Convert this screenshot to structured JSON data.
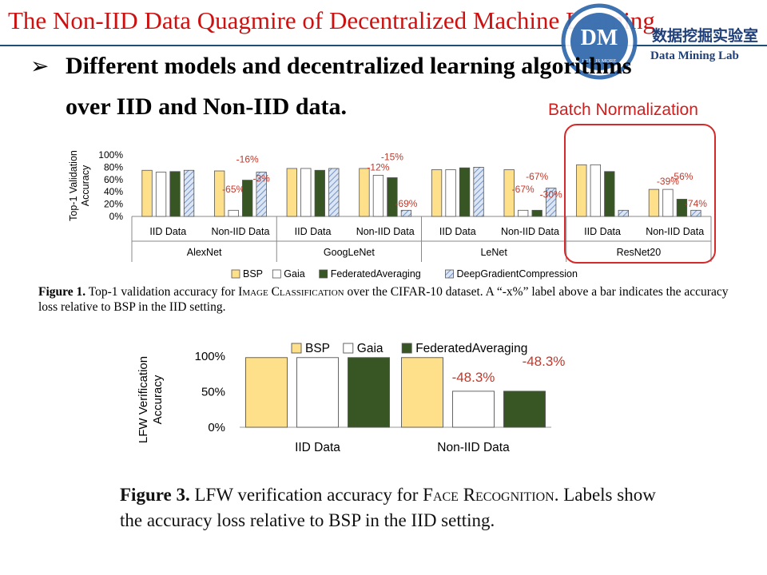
{
  "header": {
    "title": "The Non-IID Data Quagmire of Decentralized Machine Learning",
    "logo": {
      "monogram": "DM",
      "motto": "LESS IS MORE",
      "name_cn": "数据挖掘实验室",
      "name_en": "Data Mining Lab"
    }
  },
  "bullet": {
    "symbol": "➢",
    "line1": "Different models and decentralized learning algorithms",
    "line2": "over IID and Non-IID data."
  },
  "highlight": {
    "label": "Batch Normalization",
    "color": "#d01f1f"
  },
  "captions": {
    "fig1_label": "Figure 1.",
    "fig1_pre": "Top-1 validation accuracy for ",
    "fig1_task": "Image Classification",
    "fig1_post": " over the CIFAR-10 dataset. A “-x%” label above a bar indicates the accuracy loss relative to BSP in the IID setting.",
    "fig3_label": "Figure 3.",
    "fig3_pre": "LFW verification accuracy for ",
    "fig3_task": "Face Recognition",
    "fig3_post": ". Labels show the accuracy loss relative to BSP in the IID setting."
  },
  "chart_data": [
    {
      "type": "bar",
      "ylabel": "Top-1 Validation Accuracy",
      "ylim": [
        0,
        100
      ],
      "yticks": [
        "0%",
        "20%",
        "40%",
        "60%",
        "80%",
        "100%"
      ],
      "legend_position": "bottom",
      "models": [
        "AlexNet",
        "GoogLeNet",
        "LeNet",
        "ResNet20"
      ],
      "settings": [
        "IID Data",
        "Non-IID Data"
      ],
      "series": [
        {
          "name": "BSP",
          "color": "#ffe08a",
          "values": [
            [
              75,
              74
            ],
            [
              78,
              78
            ],
            [
              76,
              76
            ],
            [
              84,
              44
            ]
          ]
        },
        {
          "name": "Gaia",
          "color": "#ffffff",
          "values": [
            [
              72,
              10
            ],
            [
              78,
              67
            ],
            [
              76,
              10
            ],
            [
              84,
              44
            ]
          ]
        },
        {
          "name": "FederatedAveraging",
          "color": "#375623",
          "values": [
            [
              73,
              59
            ],
            [
              75,
              63
            ],
            [
              79,
              10
            ],
            [
              73,
              28
            ]
          ]
        },
        {
          "name": "DeepGradientCompression",
          "color": "#b4c7e7",
          "values": [
            [
              75,
              72
            ],
            [
              78,
              10
            ],
            [
              80,
              46
            ],
            [
              10,
              10
            ]
          ]
        }
      ],
      "annotations": [
        [
          "-65%",
          "-16%",
          "-3%"
        ],
        [
          "-12%",
          "-15%",
          "-69%"
        ],
        [
          "-67%",
          "-67%",
          "-30%"
        ],
        [
          "-39%",
          "-56%",
          "-74%"
        ]
      ]
    },
    {
      "type": "bar",
      "ylabel": "LFW Verification Accuracy",
      "ylim": [
        0,
        100
      ],
      "yticks": [
        "0%",
        "50%",
        "100%"
      ],
      "legend_position": "top",
      "categories": [
        "IID Data",
        "Non-IID Data"
      ],
      "series": [
        {
          "name": "BSP",
          "color": "#ffe08a",
          "values": [
            98,
            98
          ]
        },
        {
          "name": "Gaia",
          "color": "#ffffff",
          "values": [
            98,
            50.7
          ]
        },
        {
          "name": "FederatedAveraging",
          "color": "#375623",
          "values": [
            98,
            50.7
          ]
        }
      ],
      "annotations": [
        "-48.3%",
        "-48.3%"
      ]
    }
  ]
}
